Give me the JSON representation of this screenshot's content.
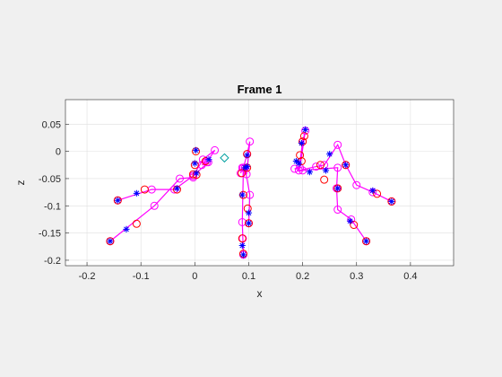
{
  "chart_data": {
    "type": "scatter",
    "title": "Frame 1",
    "xlabel": "x",
    "ylabel": "z",
    "xlim": [
      -0.24,
      0.48
    ],
    "ylim": [
      -0.21,
      0.095
    ],
    "xticks": [
      -0.2,
      -0.1,
      0,
      0.1,
      0.2,
      0.3,
      0.4
    ],
    "xtick_labels": [
      "-0.2",
      "-0.1",
      "0",
      "0.1",
      "0.2",
      "0.3",
      "0.4"
    ],
    "yticks": [
      -0.2,
      -0.15,
      -0.1,
      -0.05,
      0,
      0.05
    ],
    "ytick_labels": [
      "-0.2",
      "-0.15",
      "-0.1",
      "-0.05",
      "0",
      "0.05"
    ],
    "grid": true,
    "colors": {
      "line": "#ff00ff",
      "circle_red": "#ff0000",
      "star_blue": "#0000ff",
      "diamond": "#00a0a0"
    },
    "series": [
      {
        "marker": "o",
        "color": "#ff00ff",
        "connected": true,
        "segments": [
          [
            [
              -0.003,
              -0.048
            ],
            [
              -0.028,
              -0.05
            ],
            [
              -0.075,
              -0.1
            ],
            [
              -0.157,
              -0.165
            ]
          ],
          [
            [
              0.013,
              -0.025
            ],
            [
              0.025,
              -0.02
            ],
            [
              -0.003,
              -0.045
            ],
            [
              -0.038,
              -0.07
            ],
            [
              -0.08,
              -0.07
            ],
            [
              -0.143,
              -0.09
            ]
          ],
          [
            [
              0.022,
              -0.02
            ],
            [
              0.037,
              0.002
            ],
            [
              0.015,
              -0.015
            ],
            [
              -0.003,
              -0.045
            ]
          ],
          [
            [
              0.093,
              -0.03
            ],
            [
              0.096,
              -0.042
            ],
            [
              0.102,
              0.018
            ],
            [
              0.097,
              -0.005
            ],
            [
              0.09,
              -0.03
            ],
            [
              0.088,
              -0.13
            ],
            [
              0.089,
              -0.16
            ],
            [
              0.09,
              -0.19
            ]
          ],
          [
            [
              0.093,
              -0.03
            ],
            [
              0.102,
              -0.08
            ],
            [
              0.1,
              -0.132
            ]
          ],
          [
            [
              0.088,
              -0.03
            ],
            [
              0.085,
              -0.04
            ]
          ],
          [
            [
              0.185,
              -0.032
            ],
            [
              0.195,
              -0.03
            ],
            [
              0.205,
              0.038
            ],
            [
              0.2,
              0.018
            ],
            [
              0.193,
              -0.035
            ],
            [
              0.225,
              -0.028
            ],
            [
              0.24,
              -0.025
            ],
            [
              0.265,
              0.012
            ],
            [
              0.28,
              -0.025
            ],
            [
              0.3,
              -0.062
            ],
            [
              0.33,
              -0.075
            ],
            [
              0.365,
              -0.092
            ]
          ],
          [
            [
              0.2,
              -0.035
            ],
            [
              0.265,
              -0.03
            ],
            [
              0.263,
              -0.068
            ],
            [
              0.265,
              -0.107
            ],
            [
              0.29,
              -0.125
            ],
            [
              0.318,
              -0.165
            ]
          ]
        ]
      },
      {
        "marker": "o",
        "color": "#ff0000",
        "connected": false,
        "points": [
          [
            -0.157,
            -0.165
          ],
          [
            -0.108,
            -0.133
          ],
          [
            -0.143,
            -0.09
          ],
          [
            -0.093,
            -0.07
          ],
          [
            -0.033,
            -0.07
          ],
          [
            0.0,
            -0.025
          ],
          [
            0.002,
            0.0
          ],
          [
            0.003,
            -0.043
          ],
          [
            -0.003,
            -0.042
          ],
          [
            0.02,
            -0.018
          ],
          [
            0.087,
            -0.04
          ],
          [
            0.09,
            -0.08
          ],
          [
            0.088,
            -0.16
          ],
          [
            0.09,
            -0.188
          ],
          [
            0.098,
            -0.105
          ],
          [
            0.1,
            -0.132
          ],
          [
            0.097,
            -0.03
          ],
          [
            0.097,
            -0.005
          ],
          [
            0.195,
            -0.007
          ],
          [
            0.198,
            -0.018
          ],
          [
            0.203,
            0.028
          ],
          [
            0.2,
            0.018
          ],
          [
            0.233,
            -0.025
          ],
          [
            0.24,
            -0.052
          ],
          [
            0.265,
            -0.068
          ],
          [
            0.28,
            -0.025
          ],
          [
            0.295,
            -0.135
          ],
          [
            0.318,
            -0.165
          ],
          [
            0.338,
            -0.078
          ],
          [
            0.365,
            -0.092
          ]
        ]
      },
      {
        "marker": "*",
        "color": "#0000ff",
        "connected": false,
        "points": [
          [
            -0.157,
            -0.165
          ],
          [
            -0.127,
            -0.143
          ],
          [
            -0.143,
            -0.09
          ],
          [
            -0.108,
            -0.077
          ],
          [
            -0.033,
            -0.068
          ],
          [
            0.0,
            -0.022
          ],
          [
            0.002,
            0.002
          ],
          [
            0.003,
            -0.04
          ],
          [
            0.026,
            -0.015
          ],
          [
            0.088,
            -0.08
          ],
          [
            0.088,
            -0.173
          ],
          [
            0.09,
            -0.19
          ],
          [
            0.1,
            -0.113
          ],
          [
            0.1,
            -0.132
          ],
          [
            0.097,
            -0.028
          ],
          [
            0.097,
            -0.007
          ],
          [
            0.093,
            -0.03
          ],
          [
            0.188,
            -0.018
          ],
          [
            0.193,
            -0.022
          ],
          [
            0.205,
            0.04
          ],
          [
            0.198,
            0.015
          ],
          [
            0.213,
            -0.038
          ],
          [
            0.243,
            -0.035
          ],
          [
            0.25,
            -0.005
          ],
          [
            0.265,
            -0.068
          ],
          [
            0.28,
            -0.025
          ],
          [
            0.288,
            -0.128
          ],
          [
            0.318,
            -0.165
          ],
          [
            0.33,
            -0.072
          ],
          [
            0.365,
            -0.092
          ]
        ]
      },
      {
        "marker": "d",
        "color": "#00a0a0",
        "connected": false,
        "points": [
          [
            0.055,
            -0.012
          ]
        ]
      }
    ]
  }
}
